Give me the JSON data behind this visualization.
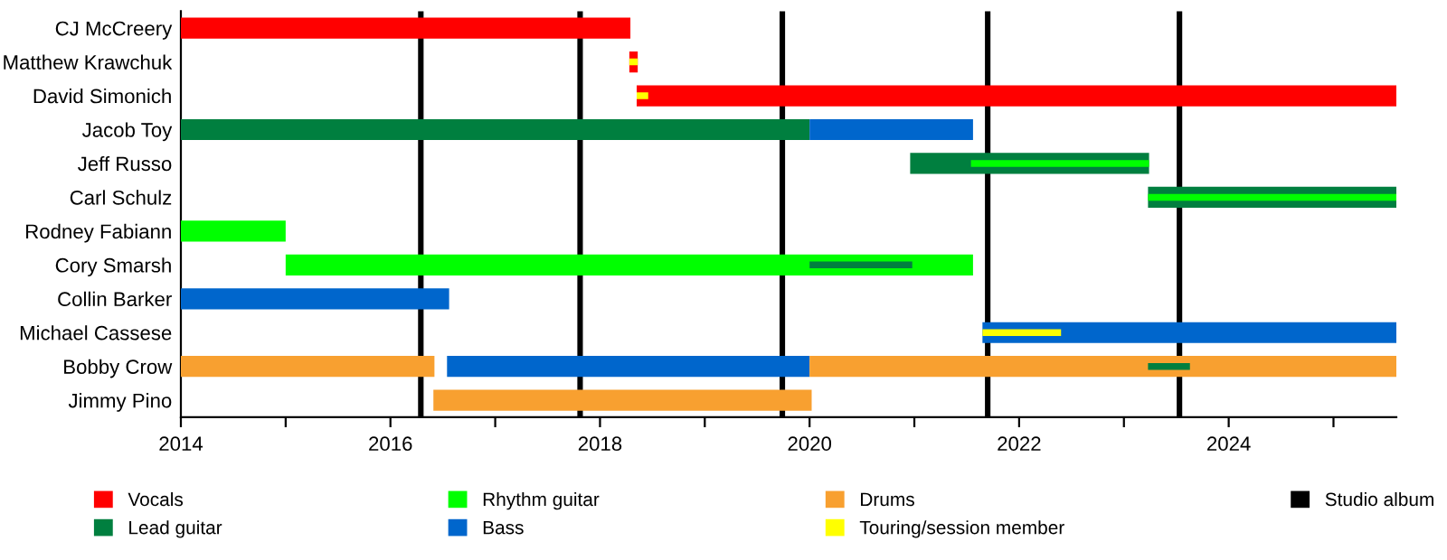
{
  "chart_data": {
    "type": "bar",
    "orientation": "horizontal",
    "categories": [
      "CJ McCreery",
      "Matthew Krawchuk",
      "David Simonich",
      "Jacob Toy",
      "Jeff Russo",
      "Carl Schulz",
      "Rodney Fabiann",
      "Cory Smarsh",
      "Collin Barker",
      "Michael Cassese",
      "Bobby Crow",
      "Jimmy Pino"
    ],
    "series": [
      {
        "name": "Vocals",
        "color": "#ff0000",
        "base": [
          2014,
          2018.28,
          2018.35,
          null,
          null,
          null,
          null,
          null,
          null,
          null,
          null,
          null
        ],
        "values": [
          4.29,
          0.08,
          7.25,
          null,
          null,
          null,
          null,
          null,
          null,
          null,
          null,
          null
        ]
      },
      {
        "name": "Lead guitar",
        "color": "#007f3f",
        "base": [
          null,
          null,
          null,
          2014,
          2020.96,
          2023.23,
          null,
          null,
          null,
          null,
          null,
          null
        ],
        "values": [
          null,
          null,
          null,
          6.0,
          2.28,
          2.37,
          null,
          null,
          null,
          null,
          null,
          null
        ]
      },
      {
        "name": "Rhythm guitar",
        "color": "#00ff00",
        "base": [
          null,
          null,
          null,
          null,
          null,
          null,
          2014,
          2015,
          null,
          null,
          null,
          null
        ],
        "values": [
          null,
          null,
          null,
          null,
          null,
          null,
          1.0,
          6.56,
          null,
          null,
          null,
          null
        ]
      },
      {
        "name": "Bass",
        "color": "#0066cc",
        "base": [
          null,
          null,
          null,
          2020.0,
          null,
          null,
          null,
          null,
          2014,
          2021.65,
          2016.54,
          null
        ],
        "values": [
          null,
          null,
          null,
          1.56,
          null,
          null,
          null,
          null,
          2.56,
          3.95,
          3.46,
          null
        ]
      },
      {
        "name": "Drums",
        "color": "#f8a030",
        "base": [
          null,
          null,
          null,
          null,
          null,
          null,
          null,
          null,
          null,
          null,
          2014,
          2016.41
        ],
        "values": [
          null,
          null,
          null,
          null,
          null,
          null,
          null,
          null,
          null,
          null,
          2.42,
          3.61
        ]
      },
      {
        "color": "#f8a030",
        "base": [
          null,
          null,
          null,
          null,
          null,
          null,
          null,
          null,
          null,
          null,
          2020.0,
          null
        ],
        "values": [
          null,
          null,
          null,
          null,
          null,
          null,
          null,
          null,
          null,
          null,
          5.6,
          null
        ]
      },
      {
        "name": "Touring/session member",
        "color": "#ffff00",
        "base": [
          null,
          2018.28,
          2018.35,
          null,
          null,
          null,
          null,
          null,
          null,
          2021.65,
          null,
          null
        ],
        "values": [
          null,
          0.08,
          0.11,
          null,
          null,
          null,
          null,
          null,
          null,
          0.75,
          null,
          null
        ]
      },
      {
        "color": "#00ff00",
        "base": [
          null,
          null,
          null,
          null,
          2021.54,
          2023.23,
          null,
          null,
          null,
          null,
          null,
          null
        ],
        "values": [
          null,
          null,
          null,
          null,
          1.7,
          2.37,
          null,
          null,
          null,
          null,
          null,
          null
        ]
      },
      {
        "color": "#007f3f",
        "base": [
          null,
          null,
          null,
          null,
          null,
          null,
          null,
          2020.0,
          null,
          null,
          2023.23,
          null
        ],
        "values": [
          null,
          null,
          null,
          null,
          null,
          null,
          null,
          0.98,
          null,
          null,
          0.4,
          null
        ]
      }
    ],
    "ref_lines": [
      {
        "axis": "x",
        "value": 2016.29,
        "label": "Studio album",
        "color": "#000000"
      },
      {
        "axis": "x",
        "value": 2017.81,
        "color": "#000000"
      },
      {
        "axis": "x",
        "value": 2019.74,
        "color": "#000000"
      },
      {
        "axis": "x",
        "value": 2021.7,
        "color": "#000000"
      },
      {
        "axis": "x",
        "value": 2023.53,
        "color": "#000000"
      }
    ],
    "xlim": [
      2014,
      2025.6
    ],
    "xticks": [
      2014,
      {
        "value": 2015,
        "label": null
      },
      2016,
      {
        "value": 2017,
        "label": null
      },
      2018,
      {
        "value": 2019,
        "label": null
      },
      2020,
      {
        "value": 2021,
        "label": null
      },
      2022,
      {
        "value": 2023,
        "label": null
      },
      2024,
      {
        "value": 2025,
        "label": null
      }
    ],
    "grid": false,
    "legend": "bottom"
  }
}
